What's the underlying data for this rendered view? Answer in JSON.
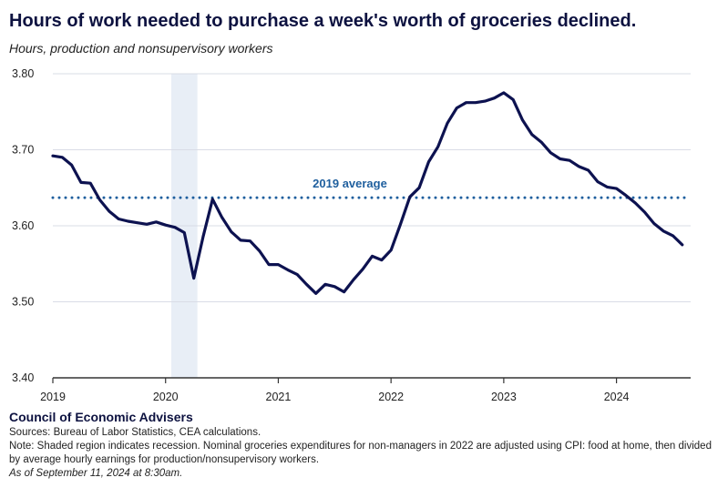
{
  "title": "Hours of work needed to purchase a week's worth of groceries declined.",
  "subtitle": "Hours, production and nonsupervisory workers",
  "footer": {
    "org": "Council of Economic Advisers",
    "sources": "Sources: Bureau of Labor Statistics, CEA calculations.",
    "note": "Note: Shaded region indicates recession. Nominal groceries expenditures for non-managers in 2022 are adjusted using CPI: food at home, then divided by average hourly earnings for production/nonsupervisory workers.",
    "as_of": "As of September 11, 2024 at 8:30am."
  },
  "colors": {
    "line": "#0d1250",
    "average": "#1f5f9e",
    "recession": "#e8eef6",
    "grid": "#d9dce6"
  },
  "chart_data": {
    "type": "line",
    "title": "Hours of work needed to purchase a week's worth of groceries declined.",
    "ylabel": "Hours, production and nonsupervisory workers",
    "ylim": [
      3.4,
      3.8
    ],
    "yticks": [
      3.4,
      3.5,
      3.6,
      3.7,
      3.8
    ],
    "ytick_labels": [
      "3.40",
      "3.50",
      "3.60",
      "3.70",
      "3.80"
    ],
    "xlim": [
      "2019-01",
      "2024-08"
    ],
    "xticks": [
      "2019-01",
      "2020-01",
      "2021-01",
      "2022-01",
      "2023-01",
      "2024-01"
    ],
    "xtick_labels": [
      "2019",
      "2020",
      "2021",
      "2022",
      "2023",
      "2024"
    ],
    "grid": "horizontal",
    "recession": {
      "start": "2020-02",
      "end": "2020-04"
    },
    "reference_line": {
      "label": "2019 average",
      "value": 3.637
    },
    "series": [
      {
        "x": [
          "2019-01",
          "2019-02",
          "2019-03",
          "2019-04",
          "2019-05",
          "2019-06",
          "2019-07",
          "2019-08",
          "2019-09",
          "2019-10",
          "2019-11",
          "2019-12",
          "2020-01",
          "2020-02",
          "2020-03",
          "2020-04",
          "2020-05",
          "2020-06",
          "2020-07",
          "2020-08",
          "2020-09",
          "2020-10",
          "2020-11",
          "2020-12",
          "2021-01",
          "2021-02",
          "2021-03",
          "2021-04",
          "2021-05",
          "2021-06",
          "2021-07",
          "2021-08",
          "2021-09",
          "2021-10",
          "2021-11",
          "2021-12",
          "2022-01",
          "2022-02",
          "2022-03",
          "2022-04",
          "2022-05",
          "2022-06",
          "2022-07",
          "2022-08",
          "2022-09",
          "2022-10",
          "2022-11",
          "2022-12",
          "2023-01",
          "2023-02",
          "2023-03",
          "2023-04",
          "2023-05",
          "2023-06",
          "2023-07",
          "2023-08",
          "2023-09",
          "2023-10",
          "2023-11",
          "2023-12",
          "2024-01",
          "2024-02",
          "2024-03",
          "2024-04",
          "2024-05",
          "2024-06",
          "2024-07",
          "2024-08"
        ],
        "values": [
          3.692,
          3.69,
          3.68,
          3.657,
          3.656,
          3.634,
          3.619,
          3.609,
          3.606,
          3.604,
          3.602,
          3.605,
          3.601,
          3.598,
          3.591,
          3.531,
          3.586,
          3.635,
          3.611,
          3.592,
          3.581,
          3.58,
          3.567,
          3.549,
          3.549,
          3.542,
          3.536,
          3.523,
          3.511,
          3.523,
          3.52,
          3.513,
          3.529,
          3.543,
          3.56,
          3.555,
          3.568,
          3.602,
          3.638,
          3.65,
          3.684,
          3.704,
          3.735,
          3.755,
          3.762,
          3.762,
          3.764,
          3.768,
          3.775,
          3.766,
          3.739,
          3.72,
          3.71,
          3.696,
          3.688,
          3.686,
          3.678,
          3.673,
          3.658,
          3.651,
          3.649,
          3.64,
          3.63,
          3.618,
          3.603,
          3.593,
          3.587,
          3.575
        ]
      }
    ]
  }
}
